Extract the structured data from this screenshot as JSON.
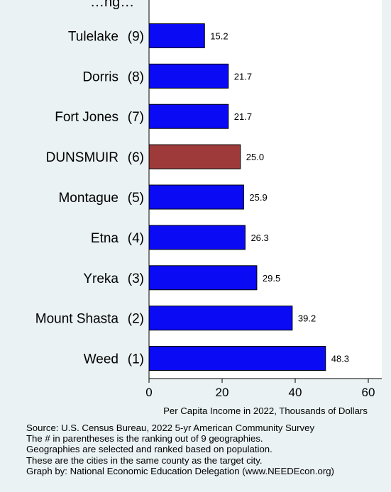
{
  "chart_data": {
    "type": "bar",
    "orientation": "horizontal",
    "title": "…ng…",
    "categories": [
      "Tulelake",
      "Dorris",
      "Fort Jones",
      "DUNSMUIR",
      "Montague",
      "Etna",
      "Yreka",
      "Mount Shasta",
      "Weed"
    ],
    "ranks": [
      "(9)",
      "(8)",
      "(7)",
      "(6)",
      "(5)",
      "(4)",
      "(3)",
      "(2)",
      "(1)"
    ],
    "values": [
      15.2,
      21.7,
      21.7,
      25.0,
      25.9,
      26.3,
      29.5,
      39.2,
      48.3
    ],
    "value_labels": [
      "15.2",
      "21.7",
      "21.7",
      "25.0",
      "25.9",
      "26.3",
      "29.5",
      "39.2",
      "48.3"
    ],
    "highlight_index": 3,
    "colors": {
      "bar": "#0a0af5",
      "highlight": "#9e3a3a",
      "background": "#eaf2f3",
      "plot_background": "#ffffff"
    },
    "xlabel": "Per Capita Income in 2022, Thousands of Dollars",
    "xlim": [
      0,
      65
    ],
    "xticks": [
      0,
      20,
      40,
      60
    ],
    "grid": false,
    "legend": "none"
  },
  "notes": [
    "Source: U.S. Census Bureau, 2022 5-yr American Community Survey",
    "The # in parentheses is the ranking out of 9 geographies.",
    "Geographies are selected and ranked based on population.",
    "These are the cities in the same county as the target city.",
    "Graph by: National Economic Education Delegation (www.NEEDEcon.org)"
  ]
}
